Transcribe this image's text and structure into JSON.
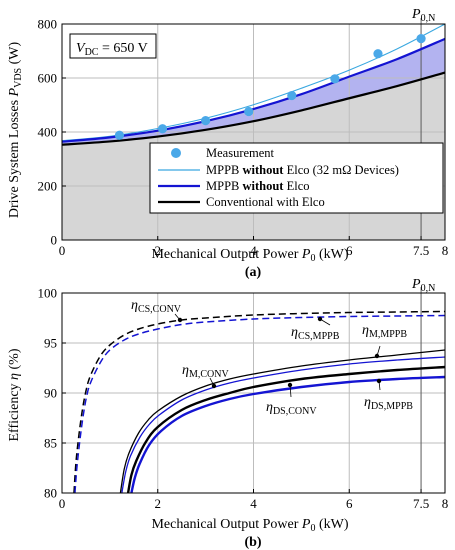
{
  "chart_data": [
    {
      "type": "line",
      "panel_label": "(a)",
      "xlabel": {
        "main": "Mechanical Output Power ",
        "var": "P",
        "sub": "0",
        "unit": " (kW)"
      },
      "ylabel": {
        "main": "Drive System Losses ",
        "var": "P",
        "sub": "VDS",
        "unit": " (W)"
      },
      "xlim": [
        0,
        8
      ],
      "ylim": [
        0,
        800
      ],
      "xticks": [
        0,
        2,
        4,
        6,
        7.5,
        8
      ],
      "xtick_labels": [
        "0",
        "2",
        "4",
        "6",
        "7.5",
        "8"
      ],
      "yticks": [
        0,
        200,
        400,
        600,
        800
      ],
      "ytick_labels": [
        "0",
        "200",
        "400",
        "600",
        "800"
      ],
      "vline_x": 7.5,
      "annotation_vdc": {
        "var": "V",
        "sub": "DC",
        "text": " = 650 V"
      },
      "annotation_p0n": {
        "var": "P",
        "sub": "0,N"
      },
      "grid": true,
      "legend_position": "bottom-right",
      "colors": {
        "measurement": "#4aa8e8",
        "mppb_32": "#3aa8e0",
        "mppb": "#1414d2",
        "conventional": "#000000",
        "fill_between": "#b3b3f0",
        "fill_below": "#d6d6d6"
      },
      "series": [
        {
          "name": "Measurement",
          "type": "scatter",
          "x": [
            1.2,
            2.1,
            3.0,
            3.9,
            4.8,
            5.7,
            6.6,
            7.5
          ],
          "y": [
            388,
            412,
            442,
            476,
            535,
            597,
            690,
            746
          ]
        },
        {
          "name_parts": [
            "MPPB ",
            "without",
            " Elco (32 mΩ Devices)"
          ],
          "type": "line",
          "x": [
            0,
            1,
            2,
            3,
            4,
            5,
            6,
            7,
            8
          ],
          "y": [
            368,
            384,
            413,
            451,
            501,
            562,
            629,
            708,
            800
          ]
        },
        {
          "name_parts": [
            "MPPB ",
            "without",
            " Elco"
          ],
          "type": "line",
          "x": [
            0,
            1,
            2,
            3,
            4,
            5,
            6,
            7,
            8
          ],
          "y": [
            364,
            380,
            405,
            440,
            485,
            540,
            605,
            670,
            745
          ]
        },
        {
          "name": "Conventional with Elco",
          "type": "line",
          "x": [
            0,
            1,
            2,
            3,
            4,
            5,
            6,
            7,
            8
          ],
          "y": [
            353,
            365,
            383,
            408,
            440,
            480,
            525,
            570,
            620
          ]
        }
      ]
    },
    {
      "type": "line",
      "panel_label": "(b)",
      "xlabel": {
        "main": "Mechanical Output Power ",
        "var": "P",
        "sub": "0",
        "unit": " (kW)"
      },
      "ylabel": {
        "main": "Efficiency ",
        "var": "η",
        "sub": "",
        "unit": " (%)"
      },
      "xlim": [
        0,
        8
      ],
      "ylim": [
        80,
        100
      ],
      "xticks": [
        0,
        2,
        4,
        6,
        7.5,
        8
      ],
      "xtick_labels": [
        "0",
        "2",
        "4",
        "6",
        "7.5",
        "8"
      ],
      "yticks": [
        80,
        85,
        90,
        95,
        100
      ],
      "ytick_labels": [
        "80",
        "85",
        "90",
        "95",
        "100"
      ],
      "vline_x": 7.5,
      "annotation_p0n": {
        "var": "P",
        "sub": "0,N"
      },
      "grid": true,
      "colors": {
        "conv": "#000000",
        "mppb": "#1414d2"
      },
      "series": [
        {
          "label": {
            "var": "η",
            "sub": "CS,CONV"
          },
          "style": "dashed",
          "color_key": "conv",
          "x": [
            0.25,
            0.3,
            0.4,
            0.5,
            0.6,
            0.8,
            1.0,
            1.3,
            1.6,
            2.0,
            2.5,
            3.0,
            4.0,
            5.0,
            6.0,
            7.0,
            8.0
          ],
          "y": [
            80,
            83.5,
            87.5,
            90.2,
            91.8,
            93.7,
            94.8,
            95.8,
            96.4,
            96.9,
            97.3,
            97.5,
            97.8,
            97.95,
            98.05,
            98.1,
            98.15
          ]
        },
        {
          "label": {
            "var": "η",
            "sub": "CS,MPPB"
          },
          "style": "dashed",
          "color_key": "mppb",
          "x": [
            0.27,
            0.32,
            0.42,
            0.52,
            0.62,
            0.82,
            1.0,
            1.3,
            1.6,
            2.0,
            2.5,
            3.0,
            4.0,
            5.0,
            6.0,
            7.0,
            8.0
          ],
          "y": [
            80,
            83.0,
            87.0,
            89.8,
            91.3,
            93.2,
            94.3,
            95.3,
            95.9,
            96.4,
            96.85,
            97.1,
            97.4,
            97.55,
            97.65,
            97.7,
            97.75
          ]
        },
        {
          "label": {
            "var": "η",
            "sub": "M,CONV"
          },
          "style": "solid",
          "color_key": "conv",
          "x": [
            1.22,
            1.3,
            1.4,
            1.6,
            1.8,
            2.0,
            2.5,
            3.0,
            3.5,
            4.0,
            5.0,
            6.0,
            7.0,
            8.0
          ],
          "y": [
            80,
            82.4,
            84.0,
            86.0,
            87.3,
            88.2,
            89.7,
            90.7,
            91.4,
            91.9,
            92.7,
            93.3,
            93.8,
            94.3
          ]
        },
        {
          "label": {
            "var": "η",
            "sub": "M,MPPB"
          },
          "style": "solid",
          "color_key": "mppb",
          "x": [
            1.25,
            1.33,
            1.43,
            1.63,
            1.83,
            2.03,
            2.5,
            3.0,
            3.5,
            4.0,
            5.0,
            6.0,
            7.0,
            8.0
          ],
          "y": [
            80,
            82.1,
            83.7,
            85.6,
            86.9,
            87.8,
            89.3,
            90.3,
            91.0,
            91.5,
            92.3,
            92.9,
            93.3,
            93.6
          ]
        },
        {
          "label": {
            "var": "η",
            "sub": "DS,CONV"
          },
          "style": "solid",
          "color_key": "conv",
          "thick": true,
          "x": [
            1.38,
            1.45,
            1.55,
            1.75,
            2.0,
            2.5,
            3.0,
            3.5,
            4.0,
            5.0,
            6.0,
            7.0,
            8.0
          ],
          "y": [
            80,
            81.8,
            83.2,
            85.1,
            86.6,
            88.3,
            89.3,
            90.0,
            90.6,
            91.4,
            91.9,
            92.3,
            92.6
          ]
        },
        {
          "label": {
            "var": "η",
            "sub": "DS,MPPB"
          },
          "style": "solid",
          "color_key": "mppb",
          "thick": true,
          "x": [
            1.45,
            1.52,
            1.62,
            1.82,
            2.07,
            2.5,
            3.0,
            3.5,
            4.0,
            5.0,
            6.0,
            7.0,
            8.0
          ],
          "y": [
            80,
            81.5,
            82.9,
            84.8,
            86.2,
            87.7,
            88.7,
            89.4,
            89.9,
            90.6,
            91.1,
            91.4,
            91.6
          ]
        }
      ]
    }
  ]
}
